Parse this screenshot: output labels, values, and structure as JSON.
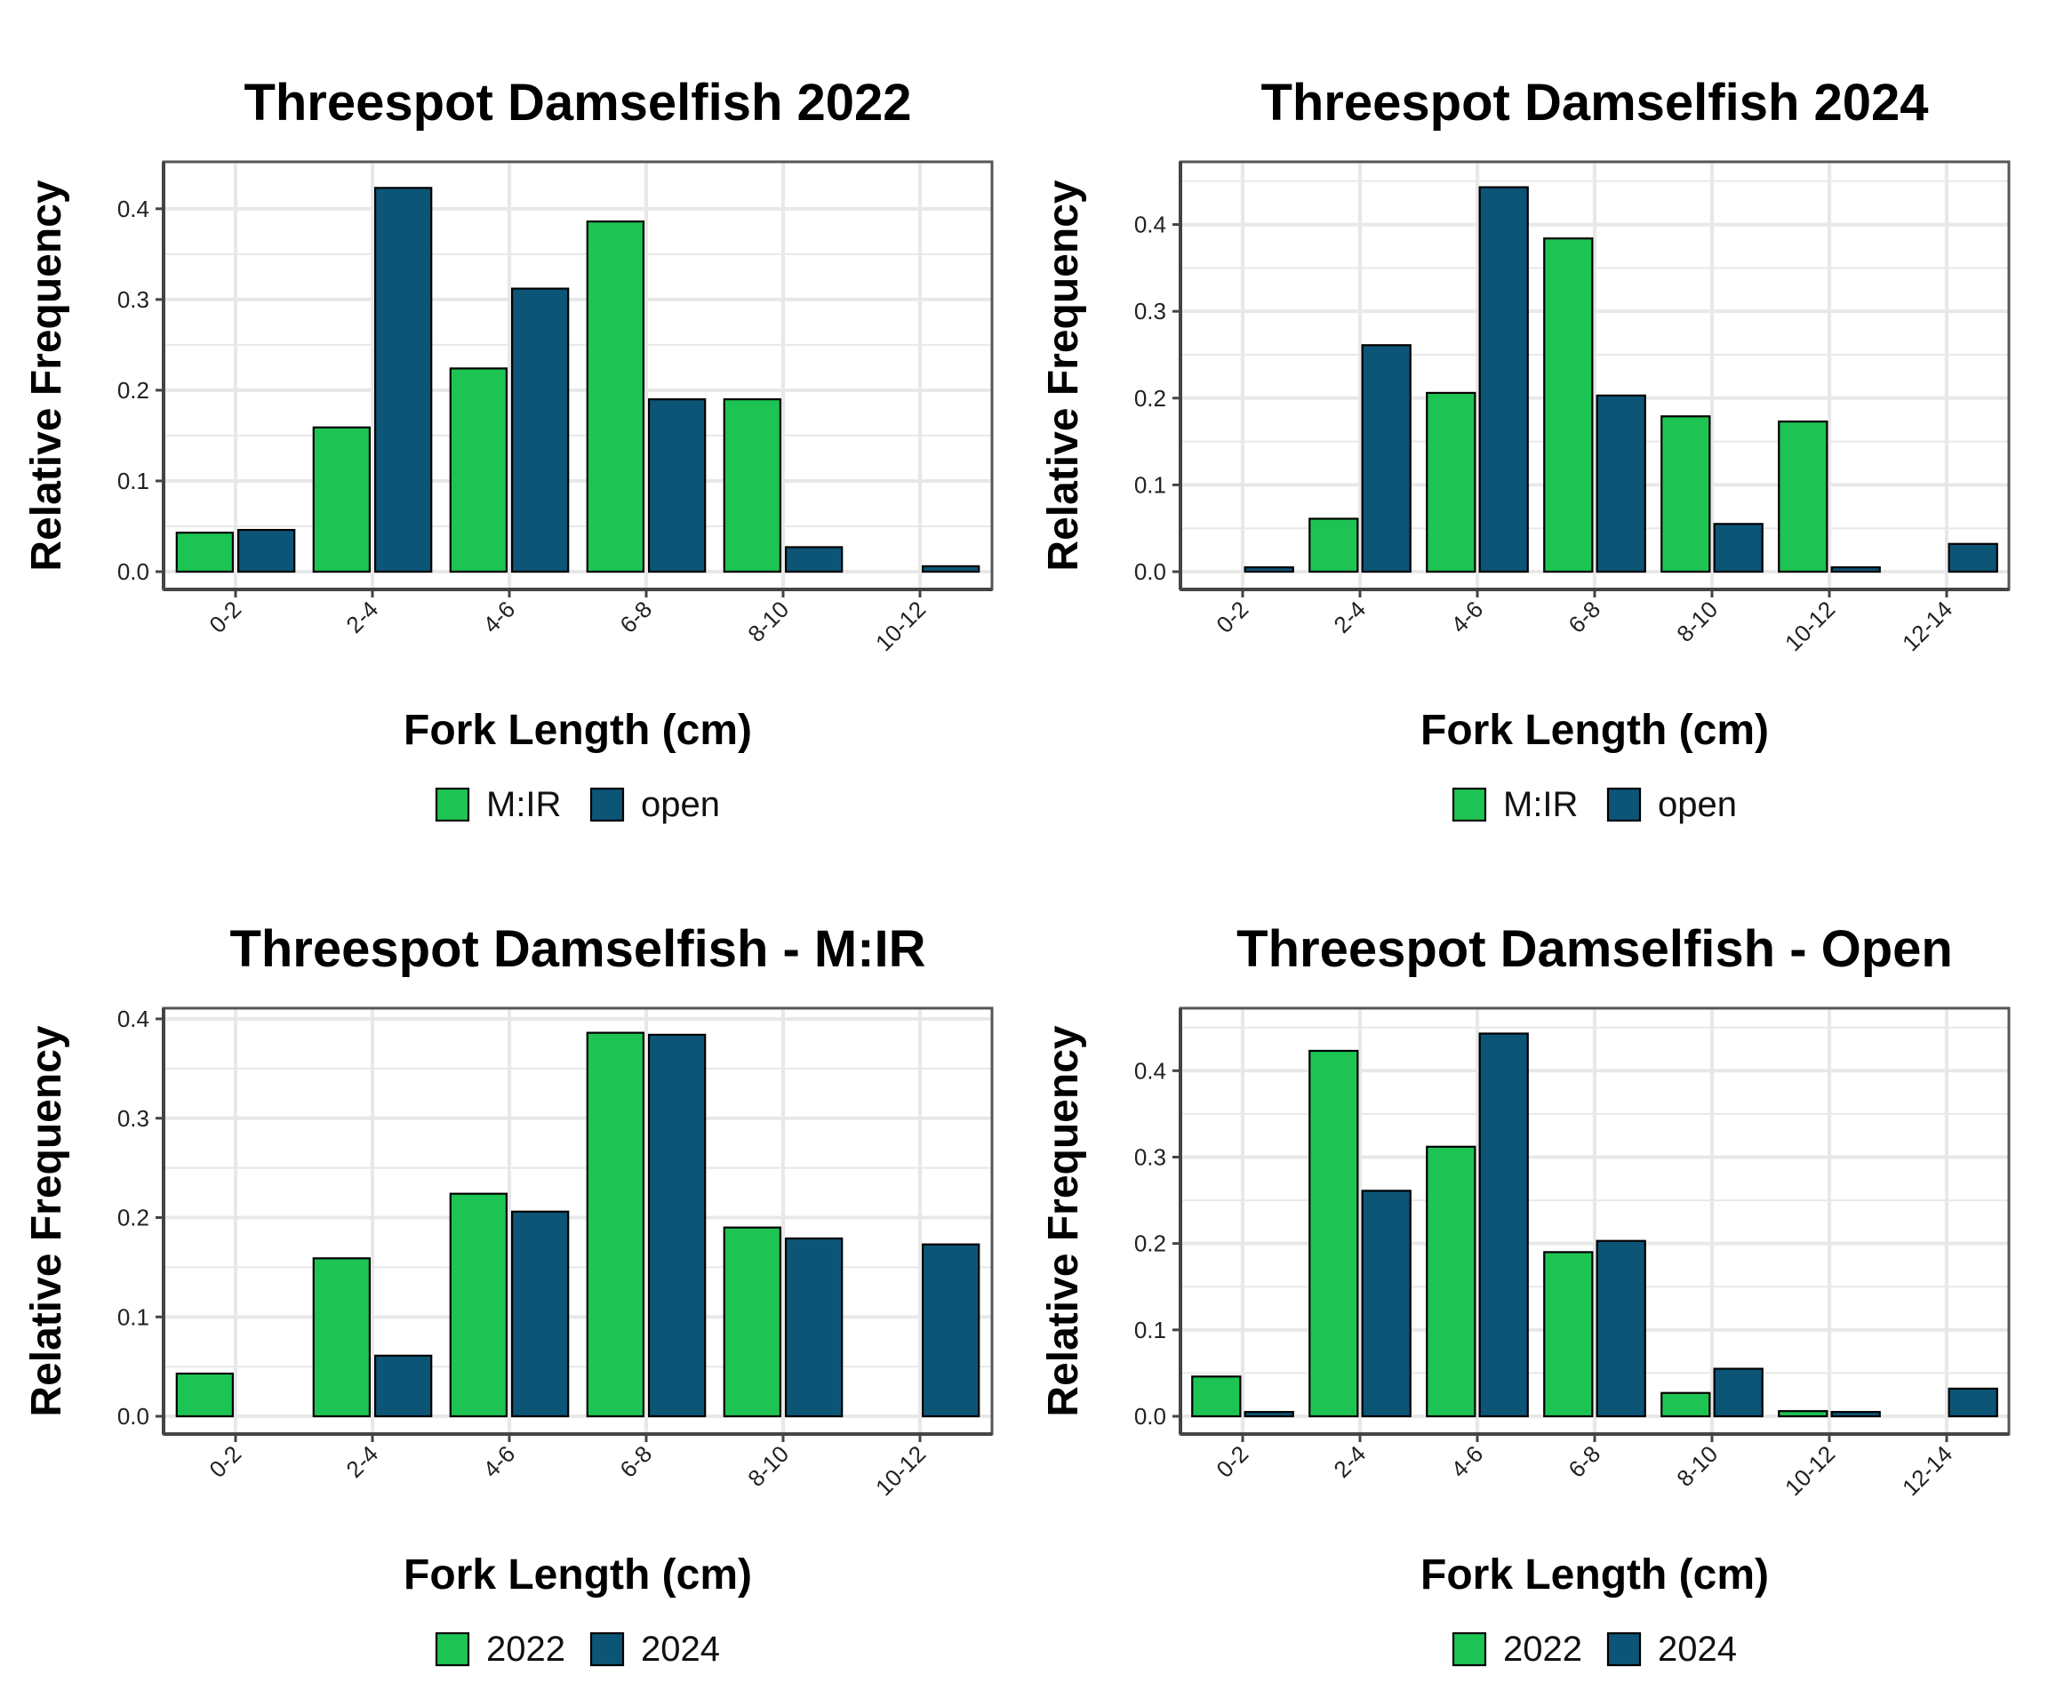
{
  "colors": {
    "first": "#1DC453",
    "second": "#0C5577",
    "grid": "#E8E8E8",
    "border": "#555555",
    "barOutline": "#000000"
  },
  "chart_data": [
    {
      "type": "bar",
      "title": "Threespot Damselfish 2022",
      "xlabel": "Fork Length (cm)",
      "ylabel": "Relative Frequency",
      "categories": [
        "0-2",
        "2-4",
        "4-6",
        "6-8",
        "8-10",
        "10-12"
      ],
      "ylim": [
        0,
        0.44
      ],
      "yticks": [
        "0.0",
        "0.1",
        "0.2",
        "0.3",
        "0.4"
      ],
      "grid": true,
      "legend_position": "bottom",
      "series": [
        {
          "name": "M:IR",
          "values": [
            0.043,
            0.159,
            0.224,
            0.386,
            0.19,
            0.0
          ]
        },
        {
          "name": "open",
          "values": [
            0.046,
            0.423,
            0.312,
            0.19,
            0.027,
            0.006
          ]
        }
      ]
    },
    {
      "type": "bar",
      "title": "Threespot Damselfish 2024",
      "xlabel": "Fork Length (cm)",
      "ylabel": "Relative Frequency",
      "categories": [
        "0-2",
        "2-4",
        "4-6",
        "6-8",
        "8-10",
        "10-12",
        "12-14"
      ],
      "ylim": [
        0,
        0.46
      ],
      "yticks": [
        "0.0",
        "0.1",
        "0.2",
        "0.3",
        "0.4"
      ],
      "grid": true,
      "legend_position": "bottom",
      "series": [
        {
          "name": "M:IR",
          "values": [
            0.0,
            0.061,
            0.206,
            0.384,
            0.179,
            0.173,
            0.0
          ]
        },
        {
          "name": "open",
          "values": [
            0.005,
            0.261,
            0.443,
            0.203,
            0.055,
            0.005,
            0.032
          ]
        }
      ]
    },
    {
      "type": "bar",
      "title": "Threespot Damselfish - M:IR",
      "xlabel": "Fork Length (cm)",
      "ylabel": "Relative Frequency",
      "categories": [
        "0-2",
        "2-4",
        "4-6",
        "6-8",
        "8-10",
        "10-12"
      ],
      "ylim": [
        0,
        0.4
      ],
      "yticks": [
        "0.0",
        "0.1",
        "0.2",
        "0.3",
        "0.4"
      ],
      "grid": true,
      "legend_position": "bottom",
      "series": [
        {
          "name": "2022",
          "values": [
            0.043,
            0.159,
            0.224,
            0.386,
            0.19,
            0.0
          ]
        },
        {
          "name": "2024",
          "values": [
            0.0,
            0.061,
            0.206,
            0.384,
            0.179,
            0.173
          ]
        }
      ]
    },
    {
      "type": "bar",
      "title": "Threespot Damselfish - Open",
      "xlabel": "Fork Length (cm)",
      "ylabel": "Relative Frequency",
      "categories": [
        "0-2",
        "2-4",
        "4-6",
        "6-8",
        "8-10",
        "10-12",
        "12-14"
      ],
      "ylim": [
        0,
        0.46
      ],
      "yticks": [
        "0.0",
        "0.1",
        "0.2",
        "0.3",
        "0.4"
      ],
      "grid": true,
      "legend_position": "bottom",
      "series": [
        {
          "name": "2022",
          "values": [
            0.046,
            0.423,
            0.312,
            0.19,
            0.027,
            0.006,
            0.0
          ]
        },
        {
          "name": "2024",
          "values": [
            0.005,
            0.261,
            0.443,
            0.203,
            0.055,
            0.005,
            0.032
          ]
        }
      ]
    }
  ]
}
